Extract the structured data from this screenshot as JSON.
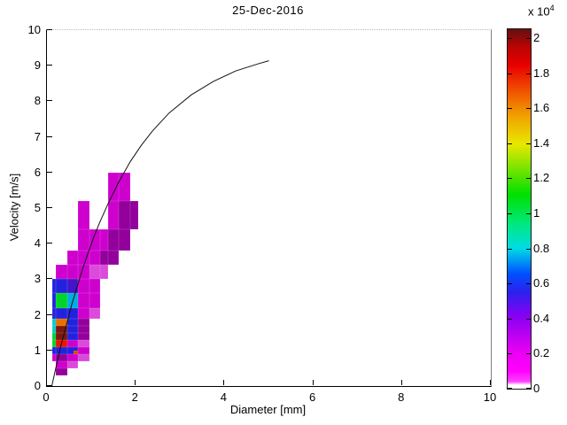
{
  "figure": {
    "background": "#ffffff"
  },
  "chart_data": {
    "type": "heatmap",
    "title": "25-Dec-2016",
    "xlabel": "Diameter [mm]",
    "ylabel": "Velocity [m/s]",
    "xlim": [
      0,
      10
    ],
    "ylim": [
      0,
      10
    ],
    "xticks": [
      0,
      2,
      4,
      6,
      8,
      10
    ],
    "yticks": [
      0,
      1,
      2,
      3,
      4,
      5,
      6,
      7,
      8,
      9,
      10
    ],
    "grid": false,
    "frame": {
      "left": "solid-black",
      "bottom": "solid-black",
      "right": "solid-gray",
      "top": "dotted-gray"
    },
    "palette": {
      "M": {
        "color": "#CE00CE",
        "value": 0.1
      },
      "Mv": {
        "color": "#93009C",
        "value": 0.3
      },
      "P": {
        "color": "#DB4ADB",
        "value": 0.05
      },
      "B": {
        "color": "#2222DE",
        "value": 0.55
      },
      "DB": {
        "color": "#4414C8",
        "value": 0.45
      },
      "C": {
        "color": "#00CCD6",
        "value": 0.8
      },
      "C2": {
        "color": "#00AEE0",
        "value": 0.72
      },
      "G": {
        "color": "#00D42A",
        "value": 1.1
      },
      "O": {
        "color": "#E87000",
        "value": 1.65
      },
      "O2": {
        "color": "#E84400",
        "value": 1.75
      },
      "R": {
        "color": "#E81600",
        "value": 1.9
      },
      "DR": {
        "color": "#7A1810",
        "value": 2.05
      }
    },
    "cells": [
      [
        1.375,
        1.625,
        5.2,
        6.0,
        "M"
      ],
      [
        1.625,
        1.875,
        5.2,
        6.0,
        "M"
      ],
      [
        0.7,
        0.95,
        4.4,
        5.2,
        "M"
      ],
      [
        1.375,
        1.625,
        4.4,
        5.2,
        "M"
      ],
      [
        1.625,
        1.875,
        4.4,
        5.2,
        "Mv"
      ],
      [
        1.875,
        2.05,
        4.4,
        5.2,
        "Mv"
      ],
      [
        0.7,
        0.95,
        3.8,
        4.4,
        "M"
      ],
      [
        0.95,
        1.2,
        3.8,
        4.4,
        "M"
      ],
      [
        1.2,
        1.375,
        3.8,
        4.4,
        "M"
      ],
      [
        1.375,
        1.625,
        3.8,
        4.4,
        "Mv"
      ],
      [
        1.625,
        1.875,
        3.8,
        4.4,
        "Mv"
      ],
      [
        0.45,
        0.7,
        3.4,
        3.8,
        "M"
      ],
      [
        0.7,
        0.95,
        3.4,
        3.8,
        "M"
      ],
      [
        0.95,
        1.2,
        3.4,
        3.8,
        "M"
      ],
      [
        1.2,
        1.375,
        3.4,
        3.8,
        "Mv"
      ],
      [
        1.375,
        1.625,
        3.4,
        3.8,
        "Mv"
      ],
      [
        0.2,
        0.45,
        3.0,
        3.4,
        "M"
      ],
      [
        0.45,
        0.7,
        3.0,
        3.4,
        "M"
      ],
      [
        0.7,
        0.95,
        3.0,
        3.4,
        "M"
      ],
      [
        0.95,
        1.2,
        3.0,
        3.4,
        "P"
      ],
      [
        1.2,
        1.375,
        3.0,
        3.4,
        "P"
      ],
      [
        0.125,
        0.2,
        2.6,
        3.0,
        "B"
      ],
      [
        0.2,
        0.45,
        2.6,
        3.0,
        "B"
      ],
      [
        0.45,
        0.7,
        2.6,
        3.0,
        "DB"
      ],
      [
        0.7,
        0.95,
        2.6,
        3.0,
        "M"
      ],
      [
        0.95,
        1.2,
        2.6,
        3.0,
        "M"
      ],
      [
        0.125,
        0.2,
        2.2,
        2.6,
        "B"
      ],
      [
        0.2,
        0.45,
        2.2,
        2.6,
        "G"
      ],
      [
        0.45,
        0.7,
        2.2,
        2.6,
        "C2"
      ],
      [
        0.7,
        0.95,
        2.2,
        2.6,
        "M"
      ],
      [
        0.95,
        1.2,
        2.2,
        2.6,
        "M"
      ],
      [
        0.125,
        0.2,
        1.9,
        2.2,
        "B"
      ],
      [
        0.2,
        0.45,
        1.9,
        2.2,
        "B"
      ],
      [
        0.45,
        0.7,
        1.9,
        2.2,
        "B"
      ],
      [
        0.7,
        0.95,
        1.9,
        2.2,
        "M"
      ],
      [
        0.95,
        1.2,
        1.9,
        2.2,
        "P"
      ],
      [
        0.125,
        0.2,
        1.7,
        1.9,
        "C"
      ],
      [
        0.2,
        0.45,
        1.7,
        1.9,
        "O"
      ],
      [
        0.45,
        0.7,
        1.7,
        1.9,
        "B"
      ],
      [
        0.7,
        0.95,
        1.7,
        1.9,
        "Mv"
      ],
      [
        0.125,
        0.2,
        1.5,
        1.7,
        "C"
      ],
      [
        0.2,
        0.45,
        1.5,
        1.7,
        "DR"
      ],
      [
        0.45,
        0.7,
        1.5,
        1.7,
        "B"
      ],
      [
        0.7,
        0.95,
        1.5,
        1.7,
        "Mv"
      ],
      [
        0.125,
        0.2,
        1.3,
        1.5,
        "G"
      ],
      [
        0.2,
        0.45,
        1.3,
        1.5,
        "DR"
      ],
      [
        0.45,
        0.7,
        1.3,
        1.5,
        "B"
      ],
      [
        0.7,
        0.95,
        1.3,
        1.5,
        "Mv"
      ],
      [
        0.125,
        0.2,
        1.1,
        1.3,
        "G"
      ],
      [
        0.2,
        0.45,
        1.1,
        1.3,
        "R"
      ],
      [
        0.45,
        0.7,
        1.1,
        1.3,
        "M"
      ],
      [
        0.7,
        0.95,
        1.1,
        1.3,
        "P"
      ],
      [
        0.125,
        0.2,
        0.9,
        1.1,
        "B"
      ],
      [
        0.2,
        0.45,
        0.9,
        1.1,
        "B"
      ],
      [
        0.45,
        0.7,
        0.9,
        1.1,
        "B"
      ],
      [
        0.6,
        0.7,
        0.9,
        1.0,
        "O2"
      ],
      [
        0.7,
        0.95,
        0.9,
        1.1,
        "M"
      ],
      [
        0.125,
        0.2,
        0.7,
        0.9,
        "M"
      ],
      [
        0.2,
        0.45,
        0.7,
        0.9,
        "Mv"
      ],
      [
        0.45,
        0.7,
        0.7,
        0.9,
        "M"
      ],
      [
        0.7,
        0.95,
        0.7,
        0.9,
        "P"
      ],
      [
        0.2,
        0.45,
        0.5,
        0.7,
        "M"
      ],
      [
        0.45,
        0.7,
        0.5,
        0.7,
        "P"
      ],
      [
        0.2,
        0.45,
        0.3,
        0.5,
        "Mv"
      ]
    ],
    "curve": {
      "color": "#111111",
      "points": [
        [
          0.11,
          0.0
        ],
        [
          0.19,
          0.45
        ],
        [
          0.31,
          1.11
        ],
        [
          0.44,
          1.72
        ],
        [
          0.56,
          2.3
        ],
        [
          0.69,
          2.83
        ],
        [
          0.81,
          3.32
        ],
        [
          0.94,
          3.78
        ],
        [
          1.06,
          4.2
        ],
        [
          1.19,
          4.6
        ],
        [
          1.38,
          5.13
        ],
        [
          1.63,
          5.76
        ],
        [
          1.88,
          6.31
        ],
        [
          2.13,
          6.77
        ],
        [
          2.38,
          7.17
        ],
        [
          2.75,
          7.67
        ],
        [
          3.25,
          8.18
        ],
        [
          3.75,
          8.56
        ],
        [
          4.25,
          8.85
        ],
        [
          4.75,
          9.05
        ],
        [
          5.0,
          9.14
        ]
      ]
    },
    "colorbar": {
      "vmin": 0,
      "vmax": 2.05,
      "scale_prefix": "x 10",
      "scale_exponent": "4",
      "ticks": [
        {
          "value": 0,
          "label": "0"
        },
        {
          "value": 0.2,
          "label": "0.2"
        },
        {
          "value": 0.4,
          "label": "0.4"
        },
        {
          "value": 0.6,
          "label": "0.6"
        },
        {
          "value": 0.8,
          "label": "0.8"
        },
        {
          "value": 1,
          "label": "1"
        },
        {
          "value": 1.2,
          "label": "1.2"
        },
        {
          "value": 1.4,
          "label": "1.4"
        },
        {
          "value": 1.6,
          "label": "1.6"
        },
        {
          "value": 1.8,
          "label": "1.8"
        },
        {
          "value": 2,
          "label": "2"
        }
      ],
      "gradient_stops": [
        {
          "pos": 0.0,
          "color": "#ffffff"
        },
        {
          "pos": 0.01,
          "color": "#ffffff"
        },
        {
          "pos": 0.02,
          "color": "#ff40ff"
        },
        {
          "pos": 0.05,
          "color": "#ff00ff"
        },
        {
          "pos": 0.1,
          "color": "#ea00f2"
        },
        {
          "pos": 0.2,
          "color": "#8a00f2"
        },
        {
          "pos": 0.27,
          "color": "#2a22ee"
        },
        {
          "pos": 0.32,
          "color": "#0050ff"
        },
        {
          "pos": 0.39,
          "color": "#00dce6"
        },
        {
          "pos": 0.46,
          "color": "#00e87c"
        },
        {
          "pos": 0.54,
          "color": "#00e000"
        },
        {
          "pos": 0.68,
          "color": "#e8e800"
        },
        {
          "pos": 0.76,
          "color": "#f0a000"
        },
        {
          "pos": 0.83,
          "color": "#f05000"
        },
        {
          "pos": 0.9,
          "color": "#e80000"
        },
        {
          "pos": 0.95,
          "color": "#bc0404"
        },
        {
          "pos": 1.0,
          "color": "#641010"
        }
      ]
    }
  }
}
